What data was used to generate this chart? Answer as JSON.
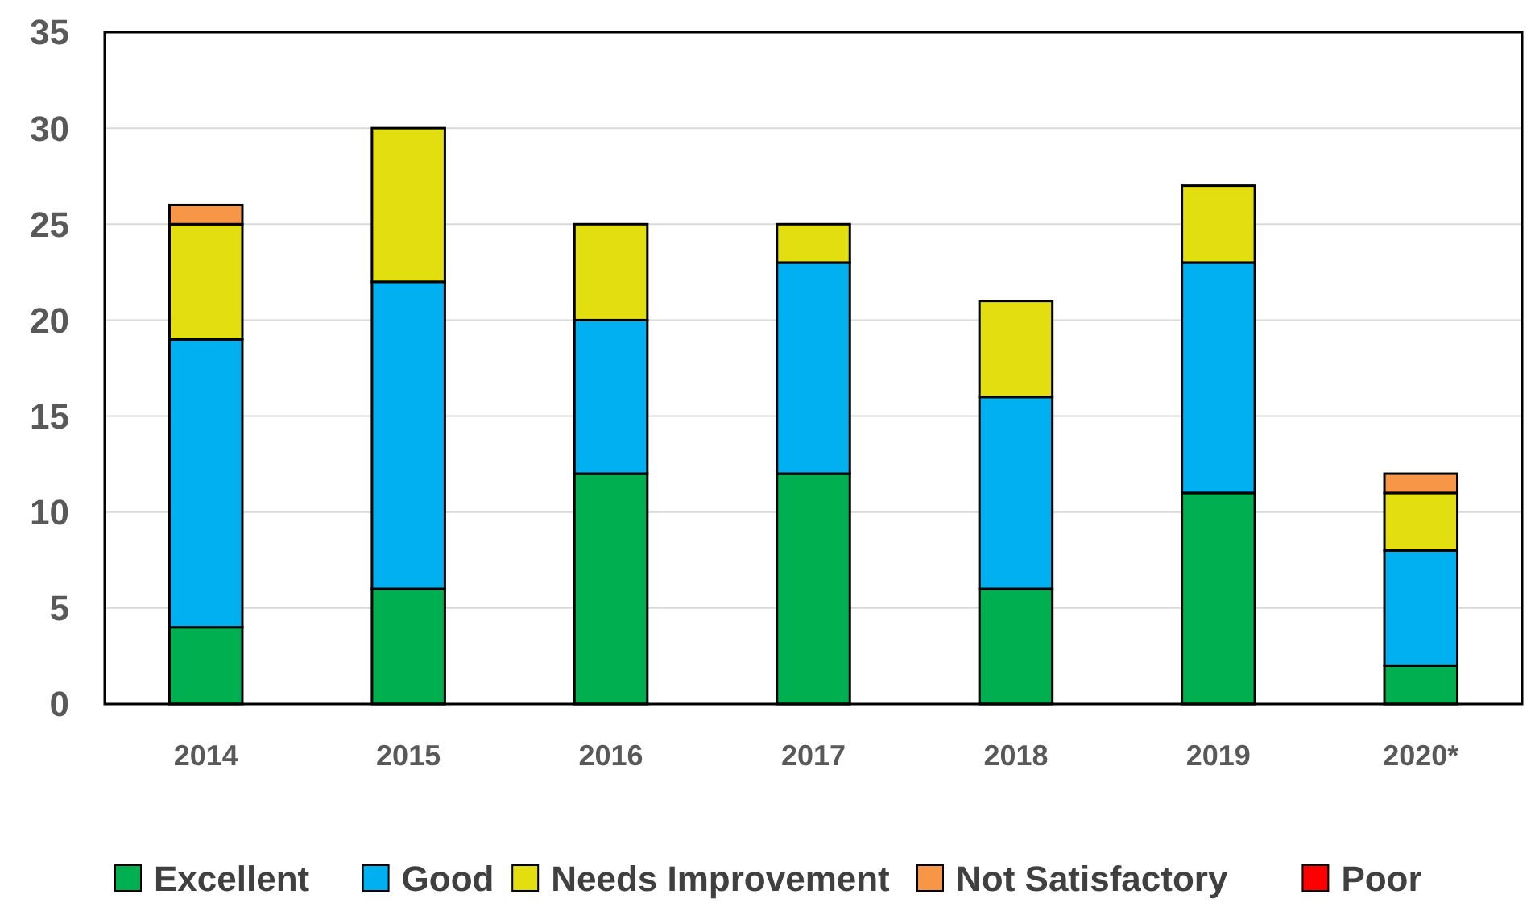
{
  "chart_data": {
    "type": "bar",
    "stacked": true,
    "categories": [
      "2014",
      "2015",
      "2016",
      "2017",
      "2018",
      "2019",
      "2020*"
    ],
    "series": [
      {
        "name": "Excellent",
        "color": "#00b050",
        "values": [
          4,
          6,
          12,
          12,
          6,
          11,
          2
        ]
      },
      {
        "name": "Good",
        "color": "#00b0f0",
        "values": [
          15,
          16,
          8,
          11,
          10,
          12,
          6
        ]
      },
      {
        "name": "Needs Improvement",
        "color": "#e2de10",
        "values": [
          6,
          8,
          5,
          2,
          5,
          4,
          3
        ]
      },
      {
        "name": "Not Satisfactory",
        "color": "#f79646",
        "values": [
          1,
          0,
          0,
          0,
          0,
          0,
          1
        ]
      },
      {
        "name": "Poor",
        "color": "#ff0000",
        "values": [
          0,
          0,
          0,
          0,
          0,
          0,
          0
        ]
      }
    ],
    "ylim": [
      0,
      35
    ],
    "yticks": [
      0,
      5,
      10,
      15,
      20,
      25,
      30,
      35
    ],
    "grid": "y",
    "legend": "bottom"
  }
}
